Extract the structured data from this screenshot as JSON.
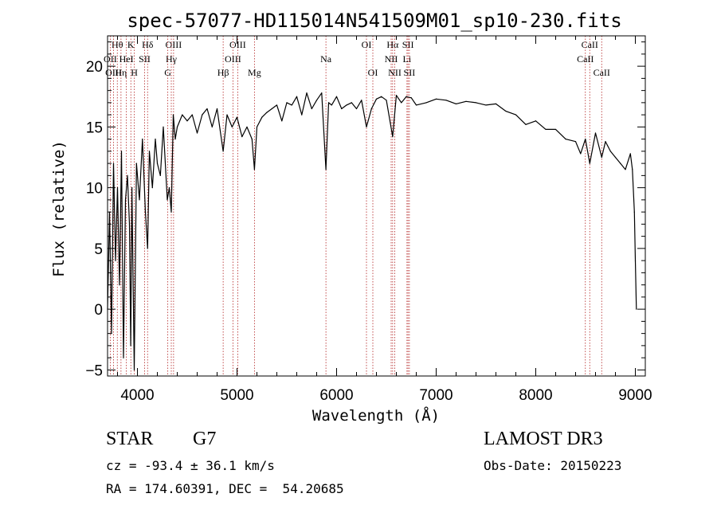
{
  "chart_data": {
    "type": "line",
    "title": "spec-57077-HD115014N541509M01_sp10-230.fits",
    "xlabel": "Wavelength (Å)",
    "ylabel": "Flux (relative)",
    "xlim": [
      3700,
      9100
    ],
    "ylim": [
      -5.5,
      22.5
    ],
    "xticks": [
      4000,
      5000,
      6000,
      7000,
      8000,
      9000
    ],
    "yticks": [
      -5,
      0,
      5,
      10,
      15,
      20
    ],
    "grid": false,
    "series": [
      {
        "name": "flux",
        "x": [
          3700,
          3720,
          3740,
          3760,
          3780,
          3800,
          3820,
          3840,
          3860,
          3880,
          3900,
          3920,
          3933,
          3945,
          3968,
          3990,
          4020,
          4050,
          4080,
          4102,
          4120,
          4150,
          4180,
          4200,
          4230,
          4260,
          4300,
          4320,
          4340,
          4360,
          4380,
          4400,
          4450,
          4500,
          4550,
          4600,
          4650,
          4700,
          4750,
          4800,
          4861,
          4900,
          4950,
          5000,
          5050,
          5100,
          5150,
          5175,
          5200,
          5250,
          5300,
          5350,
          5400,
          5450,
          5500,
          5550,
          5600,
          5650,
          5700,
          5750,
          5800,
          5850,
          5893,
          5920,
          5950,
          6000,
          6050,
          6100,
          6150,
          6200,
          6250,
          6300,
          6350,
          6400,
          6450,
          6500,
          6563,
          6600,
          6650,
          6700,
          6750,
          6800,
          6900,
          7000,
          7100,
          7200,
          7300,
          7400,
          7500,
          7600,
          7700,
          7800,
          7900,
          8000,
          8100,
          8200,
          8300,
          8400,
          8450,
          8498,
          8542,
          8600,
          8662,
          8700,
          8750,
          8800,
          8850,
          8900,
          8950,
          8970,
          8990,
          9000,
          9010
        ],
        "values": [
          0,
          8,
          -2,
          12,
          4,
          10,
          2,
          13,
          -4,
          9,
          11,
          7,
          -3,
          10,
          -5,
          12,
          9,
          14,
          8,
          5,
          13,
          10,
          14,
          12,
          11,
          15,
          9,
          10,
          8,
          16,
          14,
          15,
          16,
          15.5,
          16,
          14.5,
          16,
          16.5,
          15,
          16.5,
          13,
          16,
          15,
          15.8,
          14.2,
          15,
          14,
          11.5,
          15,
          15.8,
          16.2,
          16.5,
          16.8,
          15.5,
          17,
          16.8,
          17.5,
          16,
          17.8,
          16.5,
          17.2,
          17.8,
          11.5,
          17,
          16.8,
          17.5,
          16.5,
          16.8,
          17,
          16.5,
          17.2,
          15,
          16.5,
          17.3,
          17.5,
          17.2,
          14.2,
          17.6,
          17,
          17.5,
          17.4,
          16.8,
          17,
          17.3,
          17.2,
          16.9,
          17.1,
          17,
          16.8,
          16.9,
          16.3,
          16,
          15.2,
          15.5,
          14.8,
          14.8,
          14,
          13.8,
          12.8,
          14,
          12,
          14.5,
          12.5,
          13.8,
          13,
          12.5,
          12,
          11.5,
          12.8,
          11.5,
          8,
          4,
          0
        ]
      }
    ],
    "spectral_lines": [
      {
        "label": "Hθ",
        "wavelength": 3798,
        "row": 1
      },
      {
        "label": "OII",
        "wavelength": 3727,
        "row": 2
      },
      {
        "label": "Hη",
        "wavelength": 3835,
        "row": 3
      },
      {
        "label": "OIII",
        "wavelength": 3760,
        "row": 3
      },
      {
        "label": "K",
        "wavelength": 3934,
        "row": 1
      },
      {
        "label": "HeI",
        "wavelength": 3889,
        "row": 2
      },
      {
        "label": "H",
        "wavelength": 3969,
        "row": 3
      },
      {
        "label": "Hδ",
        "wavelength": 4102,
        "row": 1
      },
      {
        "label": "SII",
        "wavelength": 4072,
        "row": 2
      },
      {
        "label": "OIII",
        "wavelength": 4363,
        "row": 1
      },
      {
        "label": "Hγ",
        "wavelength": 4340,
        "row": 2
      },
      {
        "label": "G",
        "wavelength": 4305,
        "row": 3
      },
      {
        "label": "Hβ",
        "wavelength": 4861,
        "row": 3
      },
      {
        "label": "OIII",
        "wavelength": 5007,
        "row": 1
      },
      {
        "label": "OIII",
        "wavelength": 4959,
        "row": 2
      },
      {
        "label": "Mg",
        "wavelength": 5175,
        "row": 3
      },
      {
        "label": "Na",
        "wavelength": 5893,
        "row": 2
      },
      {
        "label": "OI",
        "wavelength": 6300,
        "row": 1
      },
      {
        "label": "OI",
        "wavelength": 6364,
        "row": 3
      },
      {
        "label": "Hα",
        "wavelength": 6563,
        "row": 1
      },
      {
        "label": "NII",
        "wavelength": 6548,
        "row": 2
      },
      {
        "label": "NII",
        "wavelength": 6584,
        "row": 3
      },
      {
        "label": "SII",
        "wavelength": 6717,
        "row": 1
      },
      {
        "label": "Li",
        "wavelength": 6707,
        "row": 2
      },
      {
        "label": "SII",
        "wavelength": 6731,
        "row": 3
      },
      {
        "label": "CaII",
        "wavelength": 8542,
        "row": 1
      },
      {
        "label": "CaII",
        "wavelength": 8498,
        "row": 2
      },
      {
        "label": "CaII",
        "wavelength": 8662,
        "row": 3
      }
    ]
  },
  "info": {
    "object_class": "STAR",
    "subclass": "G7",
    "survey": "LAMOST DR3",
    "cz": "cz = -93.4 ± 36.1 km/s",
    "obs_date": "Obs-Date: 20150223",
    "coords": "RA = 174.60391, DEC =  54.20685"
  },
  "colors": {
    "line": "#000000",
    "marker": "#b22222",
    "axes": "#000000"
  }
}
